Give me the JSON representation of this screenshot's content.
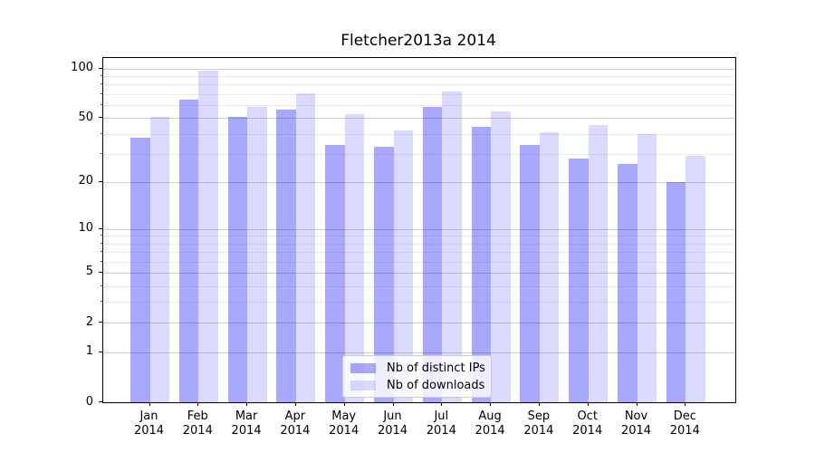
{
  "title": "Fletcher2013a 2014",
  "chart_data": {
    "type": "bar",
    "title": "Fletcher2013a 2014",
    "categories": [
      "Jan 2014",
      "Feb 2014",
      "Mar 2014",
      "Apr 2014",
      "May 2014",
      "Jun 2014",
      "Jul 2014",
      "Aug 2014",
      "Sep 2014",
      "Oct 2014",
      "Nov 2014",
      "Dec 2014"
    ],
    "series": [
      {
        "name": "Nb of distinct IPs",
        "color": "rgba(0,0,255,0.34)",
        "values": [
          38,
          65,
          51,
          56,
          34,
          33,
          58,
          44,
          34,
          28,
          26,
          20
        ]
      },
      {
        "name": "Nb of downloads",
        "color": "rgba(0,0,255,0.145)",
        "values": [
          51,
          97,
          58,
          71,
          53,
          42,
          72,
          55,
          41,
          45,
          40,
          29
        ]
      }
    ],
    "xlabel": "",
    "ylabel": "",
    "y_scale": "log10(1+value)",
    "y_ticks": [
      0,
      1,
      2,
      5,
      10,
      20,
      50,
      100
    ],
    "y_minor_gridlines": [
      3,
      4,
      6,
      7,
      8,
      9,
      30,
      40,
      60,
      70,
      80,
      90
    ],
    "ylim": [
      0,
      116.5
    ],
    "grid": "both",
    "legend_position": "lower center"
  },
  "colors": {
    "bar_distinct_ips": "rgba(0,0,255,0.34)",
    "bar_downloads": "rgba(0,0,255,0.145)",
    "grid_major": "#cfcfcf",
    "grid_minor": "#ebebeb",
    "axis": "#000000",
    "legend_border": "#cccccc"
  }
}
